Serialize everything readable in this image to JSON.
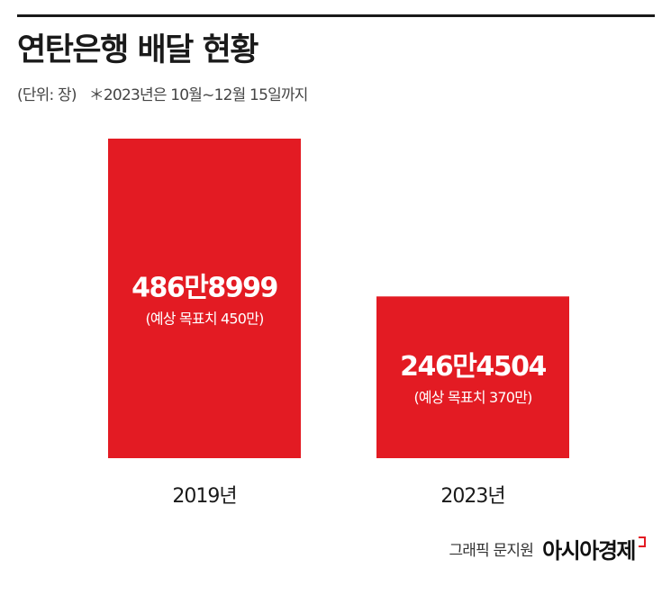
{
  "header": {
    "title": "연탄은행 배달 현황",
    "unit": "(단위: 장)",
    "note": "＊2023년은 10월~12월 15일까지"
  },
  "chart_data": {
    "type": "bar",
    "categories": [
      "2019년",
      "2023년"
    ],
    "values": [
      4868999,
      2464504
    ],
    "value_labels": [
      "486만8999",
      "246만4504"
    ],
    "sub_labels": [
      "(예상 목표치 450만)",
      "(예상 목표치 370만)"
    ],
    "bar_color": "#e31b23",
    "grid": false
  },
  "credit": {
    "byline": "그래픽 문지원",
    "brand": "아시아경제"
  },
  "colors": {
    "accent": "#e31b23",
    "text": "#1a1a1a"
  }
}
